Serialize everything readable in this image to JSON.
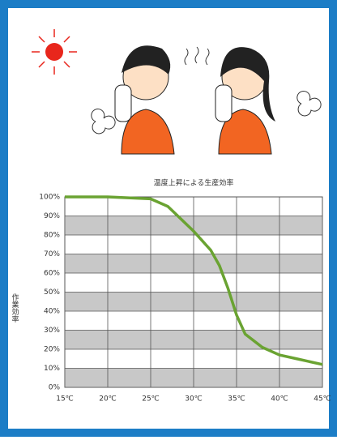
{
  "chart_data": {
    "type": "line",
    "title": "温度上昇による生産効率",
    "y_label": "作業効率",
    "x": [
      15,
      20,
      25,
      27,
      30,
      32,
      33,
      34,
      35,
      36,
      38,
      40,
      42,
      45
    ],
    "values": [
      100,
      100,
      99,
      95,
      82,
      72,
      64,
      52,
      38,
      28,
      21,
      17,
      15,
      12
    ],
    "color": "#6aa332",
    "xlim": [
      15,
      45
    ],
    "ylim": [
      0,
      100
    ],
    "xticks": [
      {
        "value": 15,
        "label": "15℃"
      },
      {
        "value": 20,
        "label": "20℃"
      },
      {
        "value": 25,
        "label": "25℃"
      },
      {
        "value": 30,
        "label": "30℃"
      },
      {
        "value": 35,
        "label": "35℃"
      },
      {
        "value": 40,
        "label": "40℃"
      },
      {
        "value": 45,
        "label": "45℃"
      }
    ],
    "yticks": [
      {
        "value": 0,
        "label": "0%"
      },
      {
        "value": 10,
        "label": "10%"
      },
      {
        "value": 20,
        "label": "20%"
      },
      {
        "value": 30,
        "label": "30%"
      },
      {
        "value": 40,
        "label": "40%"
      },
      {
        "value": 50,
        "label": "50%"
      },
      {
        "value": 60,
        "label": "60%"
      },
      {
        "value": 70,
        "label": "70%"
      },
      {
        "value": 80,
        "label": "80%"
      },
      {
        "value": 90,
        "label": "90%"
      },
      {
        "value": 100,
        "label": "100%"
      }
    ],
    "grid": true
  }
}
